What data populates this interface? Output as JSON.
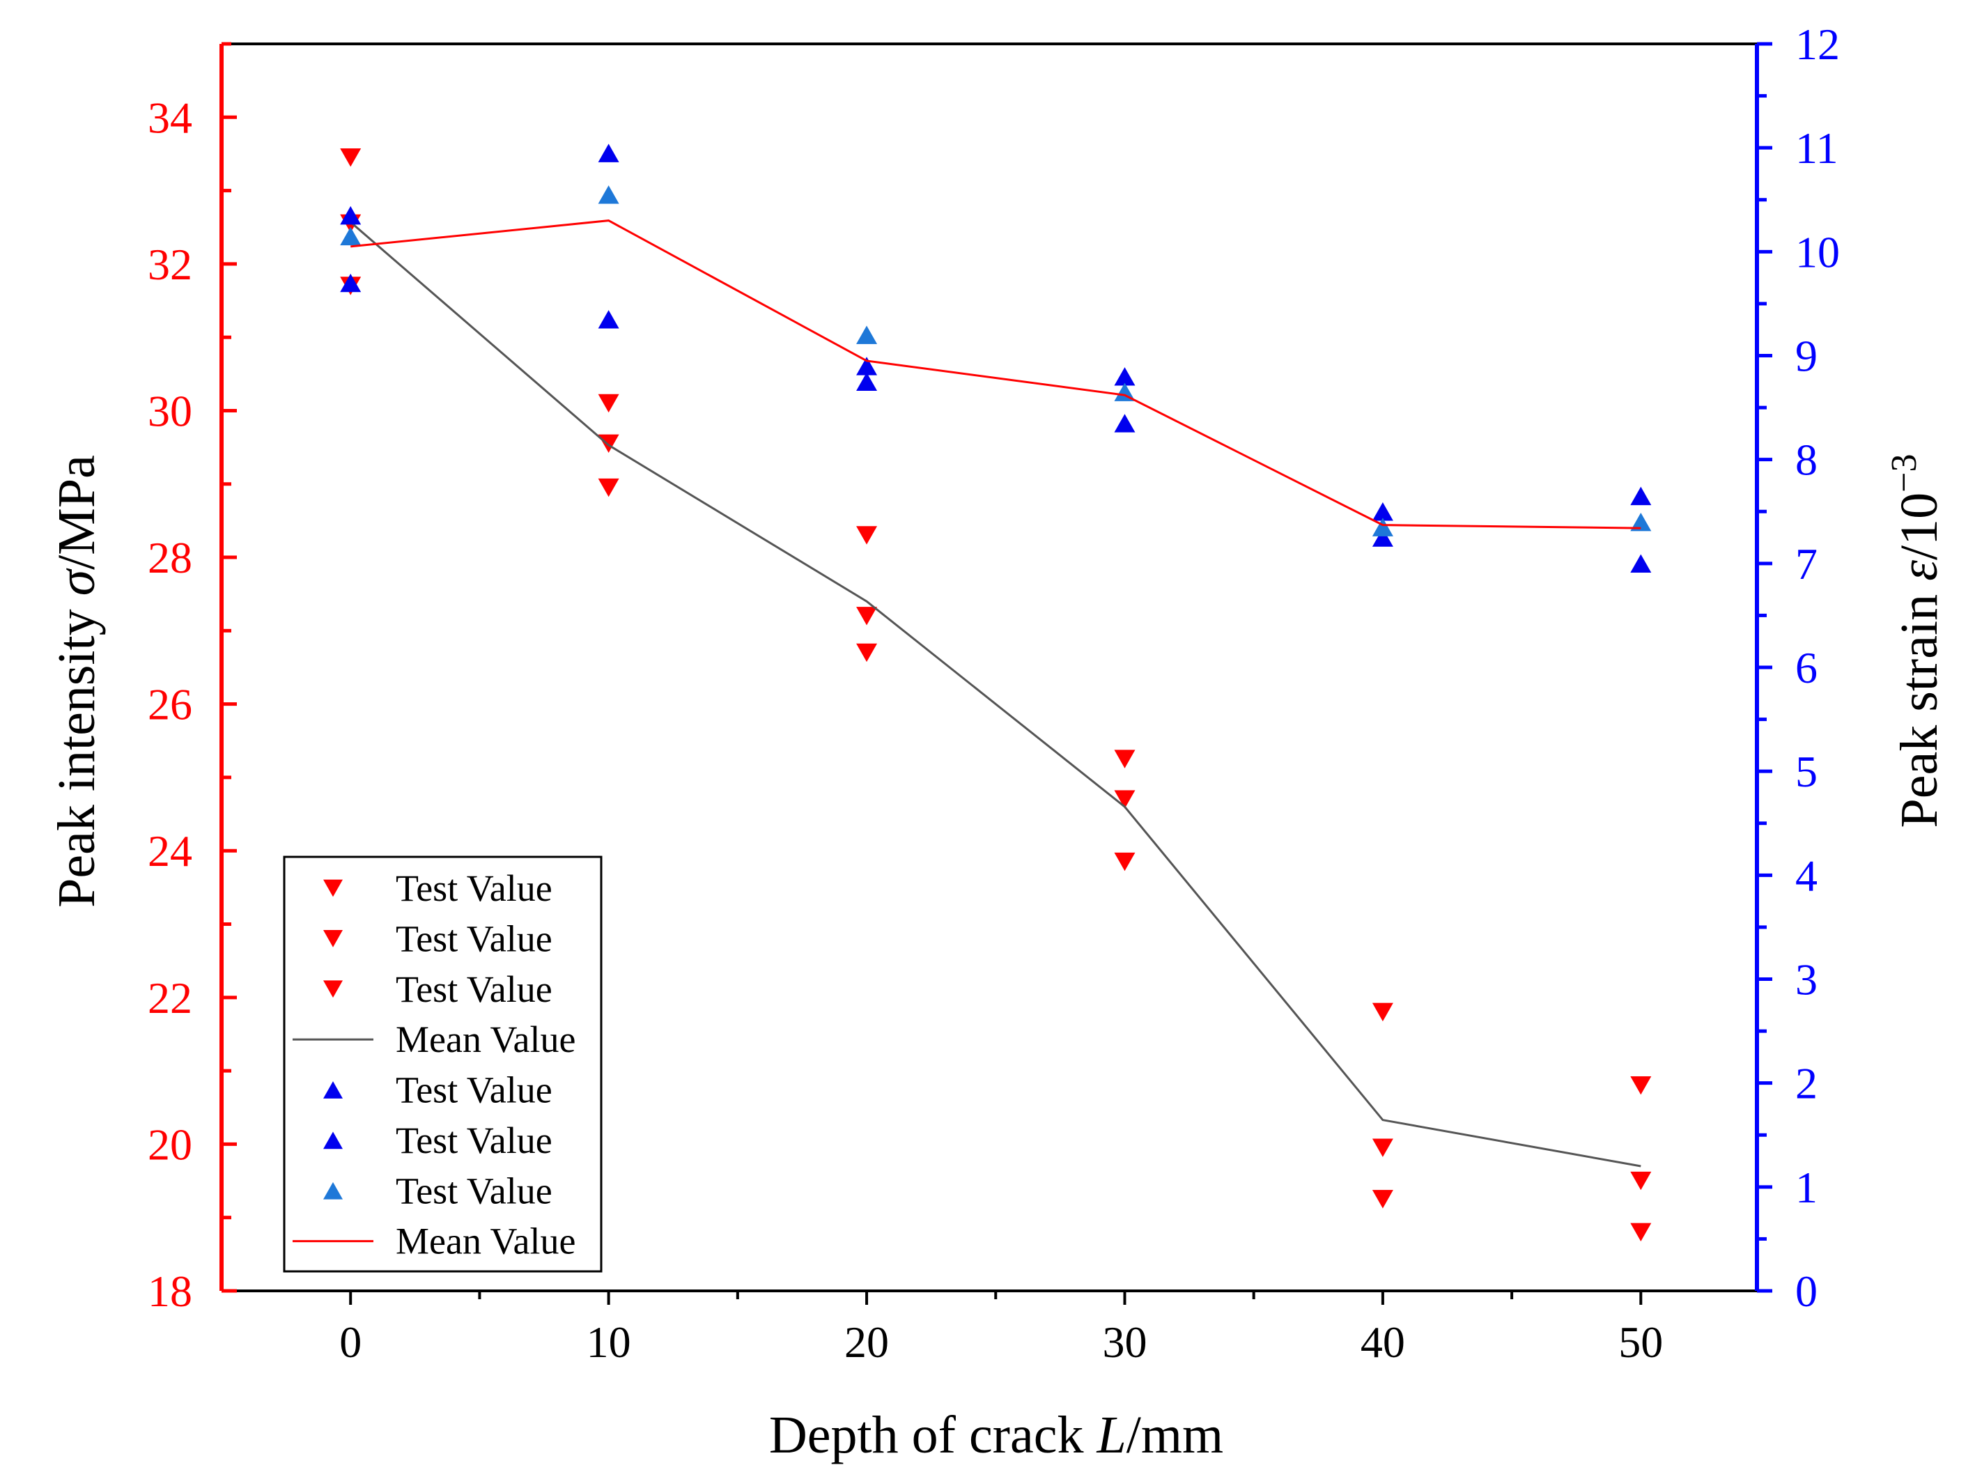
{
  "chart_data": {
    "type": "scatter",
    "xlabel": {
      "prefix": "Depth of crack ",
      "var": "L",
      "suffix": "/mm"
    },
    "ylabel_left": {
      "prefix": "Peak intensity ",
      "var": "σ",
      "suffix": "/MPa"
    },
    "ylabel_right": {
      "prefix": "Peak strain  ",
      "var": "ε",
      "suffix": "/10",
      "exponent": "−3"
    },
    "xlim": [
      -5,
      54.5
    ],
    "ylim_left": [
      18,
      35
    ],
    "ylim_right": [
      0,
      12
    ],
    "x_ticks": [
      0,
      10,
      20,
      30,
      40,
      50
    ],
    "y_left_ticks": [
      18,
      20,
      22,
      24,
      26,
      28,
      30,
      32,
      34
    ],
    "y_right_ticks": [
      0,
      1,
      2,
      3,
      4,
      5,
      6,
      7,
      8,
      9,
      10,
      11,
      12
    ],
    "colors": {
      "left_axis": "#ff0000",
      "right_axis": "#0000ff",
      "strength_marker": "#ff0000",
      "strain_marker": "#0000ee",
      "strain_marker_3": "#1e78d8",
      "strength_mean": "#555555",
      "strain_mean": "#ff0000"
    },
    "series": [
      {
        "name": "Test Value",
        "axis": "left",
        "marker": "triangle-down",
        "color": "#ff0000",
        "x": [
          0,
          10,
          20,
          30,
          40,
          50
        ],
        "values": [
          33.45,
          30.1,
          28.3,
          25.25,
          21.8,
          20.8
        ]
      },
      {
        "name": "Test Value",
        "axis": "left",
        "marker": "triangle-down",
        "color": "#ff0000",
        "x": [
          0,
          10,
          20,
          30,
          40,
          50
        ],
        "values": [
          31.7,
          29.55,
          27.2,
          24.7,
          19.95,
          19.5
        ]
      },
      {
        "name": "Test Value",
        "axis": "left",
        "marker": "triangle-down",
        "color": "#ff0000",
        "x": [
          0,
          10,
          20,
          30,
          40,
          50
        ],
        "values": [
          32.55,
          28.95,
          26.7,
          23.85,
          19.25,
          18.8
        ]
      },
      {
        "name": "Mean Value",
        "axis": "left",
        "marker": "line",
        "color": "#555555",
        "x": [
          0,
          10,
          20,
          30,
          40,
          50
        ],
        "values": [
          32.57,
          29.53,
          27.4,
          24.6,
          20.33,
          19.7
        ]
      },
      {
        "name": "Test Value",
        "axis": "right",
        "marker": "triangle-up",
        "color": "#0000ee",
        "x": [
          0,
          10,
          20,
          30,
          40,
          50
        ],
        "values": [
          10.35,
          10.95,
          8.9,
          8.8,
          7.5,
          7.65
        ]
      },
      {
        "name": "Test Value",
        "axis": "right",
        "marker": "triangle-up",
        "color": "#0000ee",
        "x": [
          0,
          10,
          20,
          30,
          40,
          50
        ],
        "values": [
          9.7,
          9.35,
          8.75,
          8.35,
          7.25,
          7.0
        ]
      },
      {
        "name": "Test Value",
        "axis": "right",
        "marker": "triangle-up",
        "color": "#1e78d8",
        "x": [
          0,
          10,
          20,
          30,
          40,
          50
        ],
        "values": [
          10.15,
          10.55,
          9.2,
          8.65,
          7.35,
          7.4
        ]
      },
      {
        "name": "Mean Value",
        "axis": "right",
        "marker": "line",
        "color": "#ff0000",
        "x": [
          0,
          10,
          20,
          30,
          40,
          50
        ],
        "values": [
          10.05,
          10.3,
          8.95,
          8.62,
          7.37,
          7.34
        ]
      }
    ],
    "legend": {
      "location": "lower-left",
      "entries": [
        {
          "label": "Test Value",
          "marker": "triangle-down",
          "color": "#ff0000"
        },
        {
          "label": "Test Value",
          "marker": "triangle-down",
          "color": "#ff0000"
        },
        {
          "label": "Test Value",
          "marker": "triangle-down",
          "color": "#ff0000"
        },
        {
          "label": "Mean Value",
          "marker": "line",
          "color": "#555555"
        },
        {
          "label": "Test Value",
          "marker": "triangle-up",
          "color": "#0000ee"
        },
        {
          "label": "Test Value",
          "marker": "triangle-up",
          "color": "#0000ee"
        },
        {
          "label": "Test Value",
          "marker": "triangle-up",
          "color": "#1e78d8"
        },
        {
          "label": "Mean Value",
          "marker": "line",
          "color": "#ff0000"
        }
      ]
    }
  }
}
